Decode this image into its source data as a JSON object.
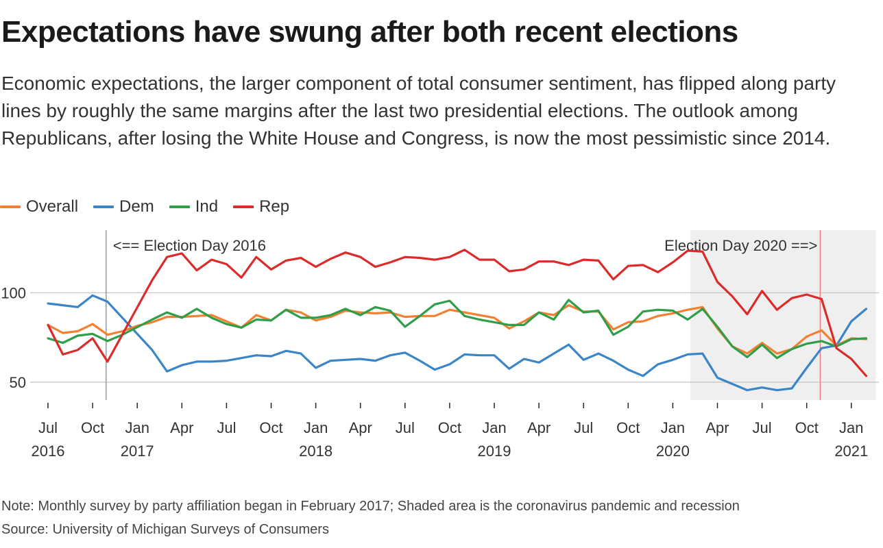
{
  "title": "Expectations have swung after both recent elections",
  "subtitle": "Economic expectations, the larger component of total consumer sentiment, has flipped along party lines by roughly the same margins after the last two presidential elections. The outlook among Republicans, after losing the White House and Congress, is now the most pessimistic since 2014.",
  "note": "Note: Monthly survey by party affiliation began in February 2017; Shaded area is the coronavirus pandemic and recession",
  "source": "Source: University of Michigan Surveys of Consumers",
  "colors": {
    "Overall": "#f28030",
    "Dem": "#3a84c8",
    "Ind": "#2e9e48",
    "Rep": "#dc2a2a",
    "shade": "#efefef",
    "grid": "#cccccc",
    "election2016": "#999999",
    "election2020": "#f08080"
  },
  "chart_data": {
    "type": "line",
    "title": "Expectations have swung after both recent elections",
    "x_start": "2016-07",
    "y_ticks": [
      50,
      100
    ],
    "ylim": [
      40,
      135
    ],
    "grid": true,
    "legend_position": "top-left",
    "x_ticks": [
      {
        "date": "2016-07",
        "month": "Jul",
        "year": "2016"
      },
      {
        "date": "2016-10",
        "month": "Oct",
        "year": ""
      },
      {
        "date": "2017-01",
        "month": "Jan",
        "year": "2017"
      },
      {
        "date": "2017-04",
        "month": "Apr",
        "year": ""
      },
      {
        "date": "2017-07",
        "month": "Jul",
        "year": ""
      },
      {
        "date": "2017-10",
        "month": "Oct",
        "year": ""
      },
      {
        "date": "2018-01",
        "month": "Jan",
        "year": "2018"
      },
      {
        "date": "2018-04",
        "month": "Apr",
        "year": ""
      },
      {
        "date": "2018-07",
        "month": "Jul",
        "year": ""
      },
      {
        "date": "2018-10",
        "month": "Oct",
        "year": ""
      },
      {
        "date": "2019-01",
        "month": "Jan",
        "year": "2019"
      },
      {
        "date": "2019-04",
        "month": "Apr",
        "year": ""
      },
      {
        "date": "2019-07",
        "month": "Jul",
        "year": ""
      },
      {
        "date": "2019-10",
        "month": "Oct",
        "year": ""
      },
      {
        "date": "2020-01",
        "month": "Jan",
        "year": "2020"
      },
      {
        "date": "2020-04",
        "month": "Apr",
        "year": ""
      },
      {
        "date": "2020-07",
        "month": "Jul",
        "year": ""
      },
      {
        "date": "2020-10",
        "month": "Oct",
        "year": ""
      },
      {
        "date": "2021-01",
        "month": "Jan",
        "year": "2021"
      }
    ],
    "shaded_region": {
      "start": "2020-02",
      "end": "2021-02"
    },
    "annotations": [
      {
        "date": "2016-11",
        "text": "<== Election Day 2016",
        "side": "right"
      },
      {
        "date": "2020-11",
        "text": "Election Day 2020 ==>",
        "side": "left"
      }
    ],
    "series": [
      {
        "name": "Overall",
        "color": "#f28030",
        "values": [
          82,
          77.5,
          78.5,
          82.5,
          76.5,
          78.5,
          81.5,
          83.5,
          86.5,
          86.5,
          87,
          87.5,
          84,
          80.5,
          87.5,
          84.5,
          90.5,
          89,
          84.5,
          86.5,
          90,
          89,
          88.5,
          89,
          86.5,
          87,
          87,
          90.5,
          89,
          87.5,
          86,
          80,
          84,
          89,
          87.5,
          93,
          89.5,
          89.5,
          79.5,
          83.5,
          84,
          87,
          88.5,
          90.5,
          92,
          80,
          70,
          66,
          72,
          66,
          68.5,
          75.5,
          79,
          70.5,
          74.5,
          74
        ]
      },
      {
        "name": "Dem",
        "color": "#3a84c8",
        "values": [
          94,
          93,
          92,
          98.5,
          95,
          null,
          null,
          68,
          56,
          59.5,
          61.5,
          61.5,
          62,
          63.5,
          65,
          64.5,
          67.5,
          66,
          58,
          62,
          62.5,
          63,
          62,
          65,
          66.5,
          62,
          57,
          60,
          65.5,
          65,
          65,
          57.5,
          63,
          61,
          66,
          71,
          62.5,
          66,
          62,
          57,
          53.5,
          60,
          62.5,
          65.5,
          66,
          52.5,
          49,
          45.5,
          47,
          45.5,
          46.5,
          58,
          69,
          70.5,
          84,
          91
        ]
      },
      {
        "name": "Ind",
        "color": "#2e9e48",
        "values": [
          74.5,
          72,
          76,
          77,
          73,
          76.5,
          null,
          85,
          89,
          86,
          91,
          86,
          82.5,
          80.5,
          85,
          84.5,
          90.5,
          86,
          86,
          87.5,
          91,
          87.5,
          92,
          90,
          81,
          87,
          93.5,
          95.5,
          87,
          85,
          83.5,
          82,
          82,
          89,
          85,
          96,
          89,
          90,
          76.5,
          81,
          89.5,
          90.5,
          90,
          85,
          91,
          81,
          70,
          64,
          71,
          63.5,
          68.5,
          71.5,
          73,
          70,
          74,
          74.5
        ]
      },
      {
        "name": "Rep",
        "color": "#dc2a2a",
        "values": [
          82,
          65.5,
          68,
          74.5,
          61.5,
          null,
          null,
          107,
          120,
          122,
          112.5,
          118.5,
          116,
          108.5,
          120,
          113,
          118,
          119.5,
          114.5,
          119,
          122.5,
          120,
          114.5,
          117,
          120,
          119.5,
          118.5,
          120,
          124,
          118.5,
          118.5,
          112,
          113,
          117.5,
          117.5,
          115.5,
          118.5,
          118,
          107.5,
          115,
          115.5,
          111.5,
          117,
          123.5,
          123,
          106,
          98,
          88,
          101,
          90.5,
          97,
          99,
          96.5,
          69,
          63,
          53.5
        ]
      }
    ]
  }
}
